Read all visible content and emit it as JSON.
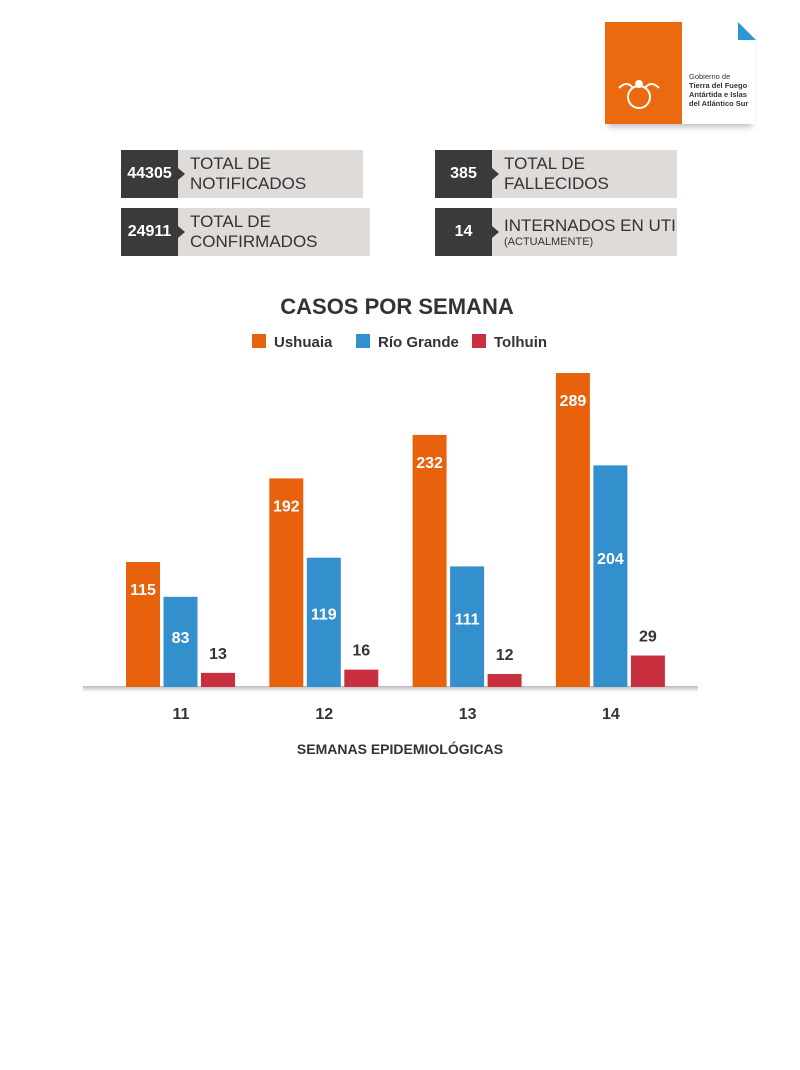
{
  "logo": {
    "lines": [
      "Gobierno de",
      "Tierra del Fuego",
      "Antártida e Islas",
      "del Atlántico Sur"
    ]
  },
  "stats": [
    {
      "value": "44305",
      "label": "TOTAL DE NOTIFICADOS"
    },
    {
      "value": "385",
      "label": "TOTAL DE FALLECIDOS"
    },
    {
      "value": "24911",
      "label": "TOTAL DE CONFIRMADOS"
    },
    {
      "value": "14",
      "label": "INTERNADOS EN UTI",
      "sublabel": "(ACTUALMENTE)"
    }
  ],
  "chart_data": {
    "type": "bar",
    "title": "CASOS POR SEMANA",
    "xlabel": "SEMANAS EPIDEMIOLÓGICAS",
    "ylabel": "",
    "categories": [
      "11",
      "12",
      "13",
      "14"
    ],
    "series": [
      {
        "name": "Ushuaia",
        "color": "#e8620e",
        "values": [
          115,
          192,
          232,
          289
        ]
      },
      {
        "name": "Río Grande",
        "color": "#3490cc",
        "values": [
          83,
          119,
          111,
          204
        ]
      },
      {
        "name": "Tolhuin",
        "color": "#c8303f",
        "values": [
          13,
          16,
          12,
          29
        ]
      }
    ],
    "ylim": [
      0,
      289
    ],
    "grid": false,
    "legend": "top"
  }
}
